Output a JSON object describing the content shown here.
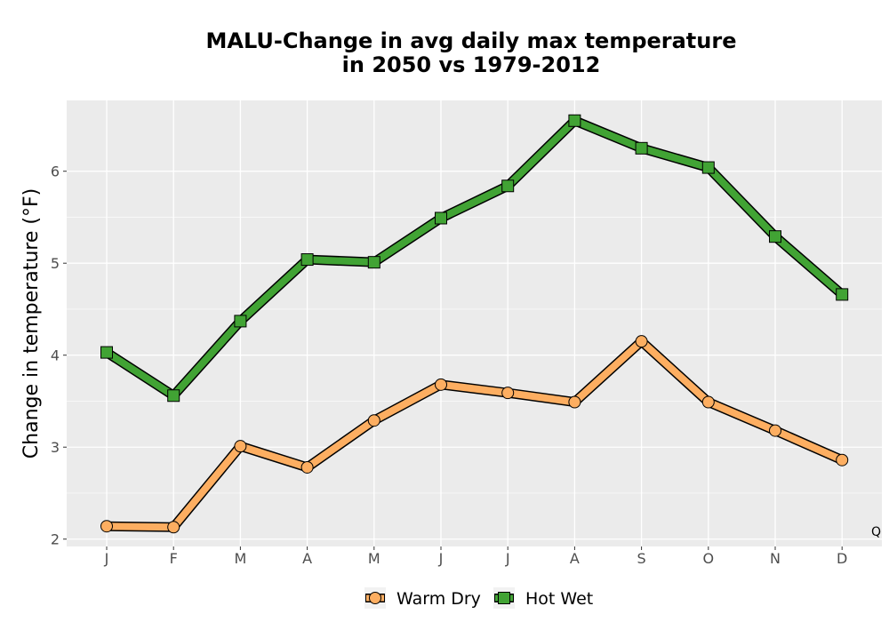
{
  "chart_data": {
    "type": "line",
    "title_lines": [
      "MALU-Change in avg daily max temperature",
      "in 2050 vs 1979-2012"
    ],
    "xlabel": "",
    "ylabel": "Change in temperature (°F)",
    "categories": [
      "J",
      "F",
      "M",
      "A",
      "M",
      "J",
      "J",
      "A",
      "S",
      "O",
      "N",
      "D"
    ],
    "ylim": [
      1.92,
      6.77
    ],
    "yticks": [
      2,
      3,
      4,
      5,
      6
    ],
    "grid": true,
    "legend_position": "bottom",
    "series": [
      {
        "name": "Warm Dry",
        "marker": "circle",
        "color": "#fdae61",
        "values": [
          2.14,
          2.13,
          3.01,
          2.78,
          3.29,
          3.68,
          3.59,
          3.49,
          4.15,
          3.49,
          3.18,
          2.86
        ]
      },
      {
        "name": "Hot Wet",
        "marker": "square",
        "color": "#41a334",
        "values": [
          4.03,
          3.56,
          4.37,
          5.04,
          5.01,
          5.49,
          5.84,
          6.55,
          6.25,
          6.04,
          5.29,
          4.66
        ]
      }
    ],
    "corner_annotation": "Q"
  },
  "colors": {
    "panel_background": "#ebebeb",
    "grid_major": "#ffffff",
    "outline": "#000000"
  }
}
